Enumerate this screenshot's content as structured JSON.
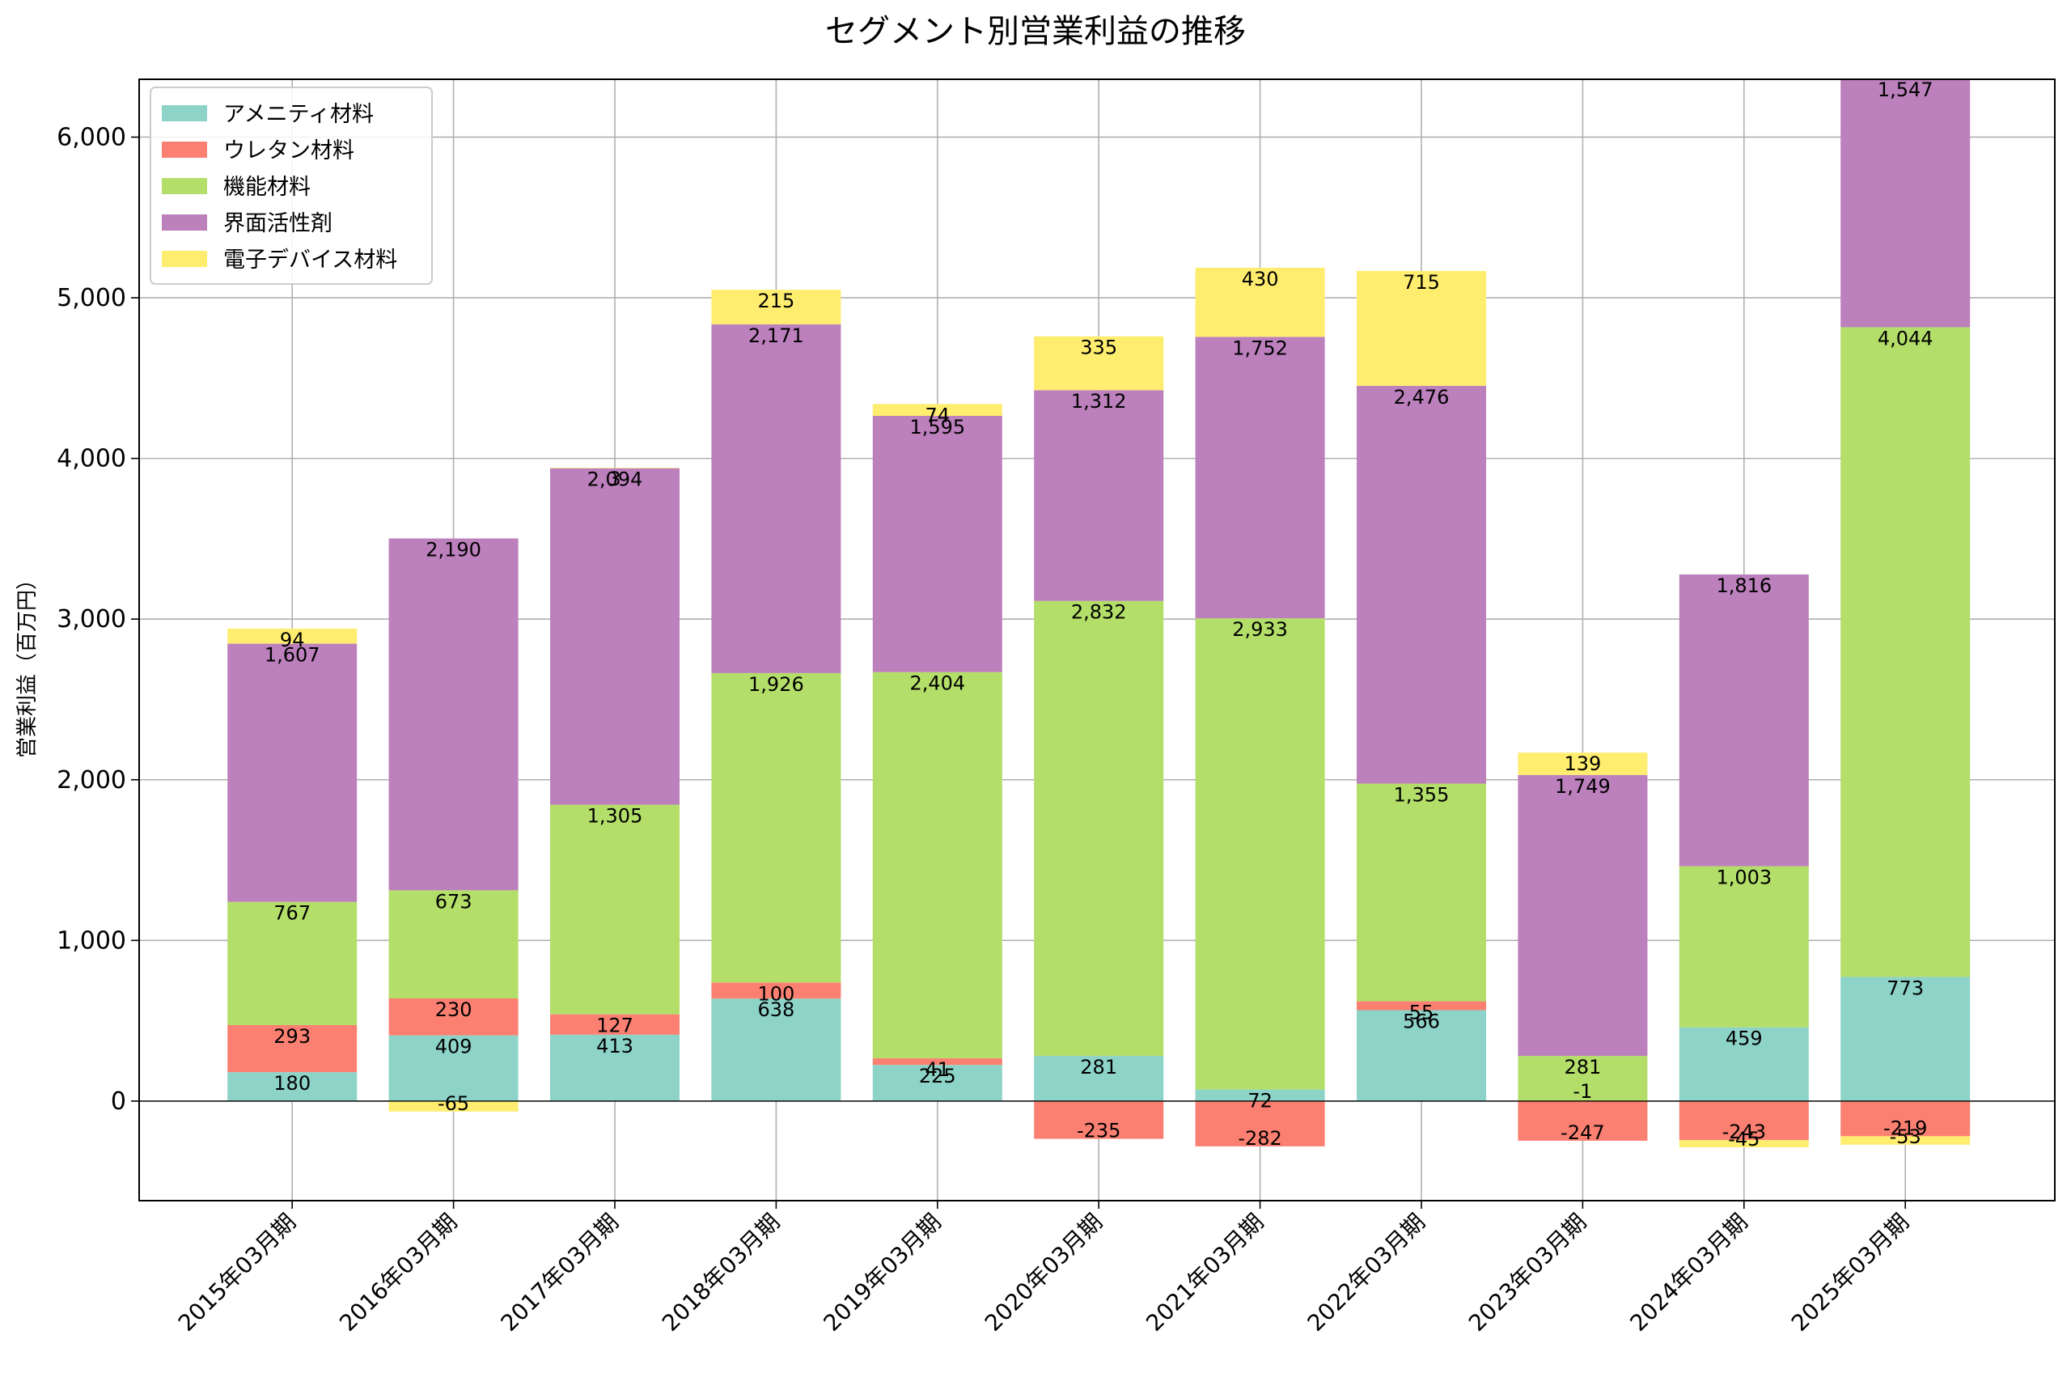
{
  "chart_data": {
    "type": "bar",
    "stacked": true,
    "title": "セグメント別営業利益の推移",
    "xlabel": "",
    "ylabel": "営業利益（百万円）",
    "ylim": [
      -620,
      6360
    ],
    "yticks": [
      0,
      1000,
      2000,
      3000,
      4000,
      5000,
      6000
    ],
    "ytick_labels": [
      "0",
      "1,000",
      "2,000",
      "3,000",
      "4,000",
      "5,000",
      "6,000"
    ],
    "grid": true,
    "legend_position": "top-left",
    "categories": [
      "2015年03月期",
      "2016年03月期",
      "2017年03月期",
      "2018年03月期",
      "2019年03月期",
      "2020年03月期",
      "2021年03月期",
      "2022年03月期",
      "2023年03月期",
      "2024年03月期",
      "2025年03月期"
    ],
    "series": [
      {
        "name": "アメニティ材料",
        "color": "#8dd3c7",
        "values": [
          180,
          409,
          413,
          638,
          225,
          281,
          72,
          566,
          0,
          459,
          773
        ],
        "labels": [
          "180",
          "409",
          "413",
          "638",
          "225",
          "281",
          "72",
          "566",
          "",
          "459",
          "773"
        ]
      },
      {
        "name": "ウレタン材料",
        "color": "#fb8072",
        "values": [
          293,
          230,
          127,
          100,
          41,
          -235,
          -282,
          55,
          -247,
          -243,
          -219
        ],
        "labels": [
          "293",
          "230",
          "127",
          "100",
          "41",
          "-235",
          "-282",
          "55",
          "-247",
          "-243",
          "-219"
        ]
      },
      {
        "name": "機能材料",
        "color": "#b3de69",
        "values": [
          767,
          673,
          1305,
          1926,
          2404,
          2832,
          2933,
          1355,
          281,
          1003,
          4044
        ],
        "labels": [
          "767",
          "673",
          "1,305",
          "1,926",
          "2,404",
          "2,832",
          "2,933",
          "1,355",
          "281",
          "1,003",
          "4,044"
        ]
      },
      {
        "name": "界面活性剤",
        "color": "#bc80bd",
        "values": [
          1607,
          2190,
          2094,
          2171,
          1595,
          1312,
          1752,
          2476,
          1749,
          1816,
          1547
        ],
        "labels": [
          "1,607",
          "2,190",
          "2,094",
          "2,171",
          "1,595",
          "1,312",
          "1,752",
          "2,476",
          "1,749",
          "1,816",
          "1,547"
        ]
      },
      {
        "name": "電子デバイス材料",
        "color": "#ffed6f",
        "values": [
          94,
          -65,
          3,
          215,
          74,
          335,
          430,
          715,
          139,
          -45,
          -53
        ],
        "labels": [
          "94",
          "-65",
          "3",
          "215",
          "74",
          "335",
          "430",
          "715",
          "139",
          "-45",
          "-53"
        ]
      }
    ],
    "extra_labels": [
      {
        "category_index": 8,
        "text": "-1"
      }
    ]
  }
}
